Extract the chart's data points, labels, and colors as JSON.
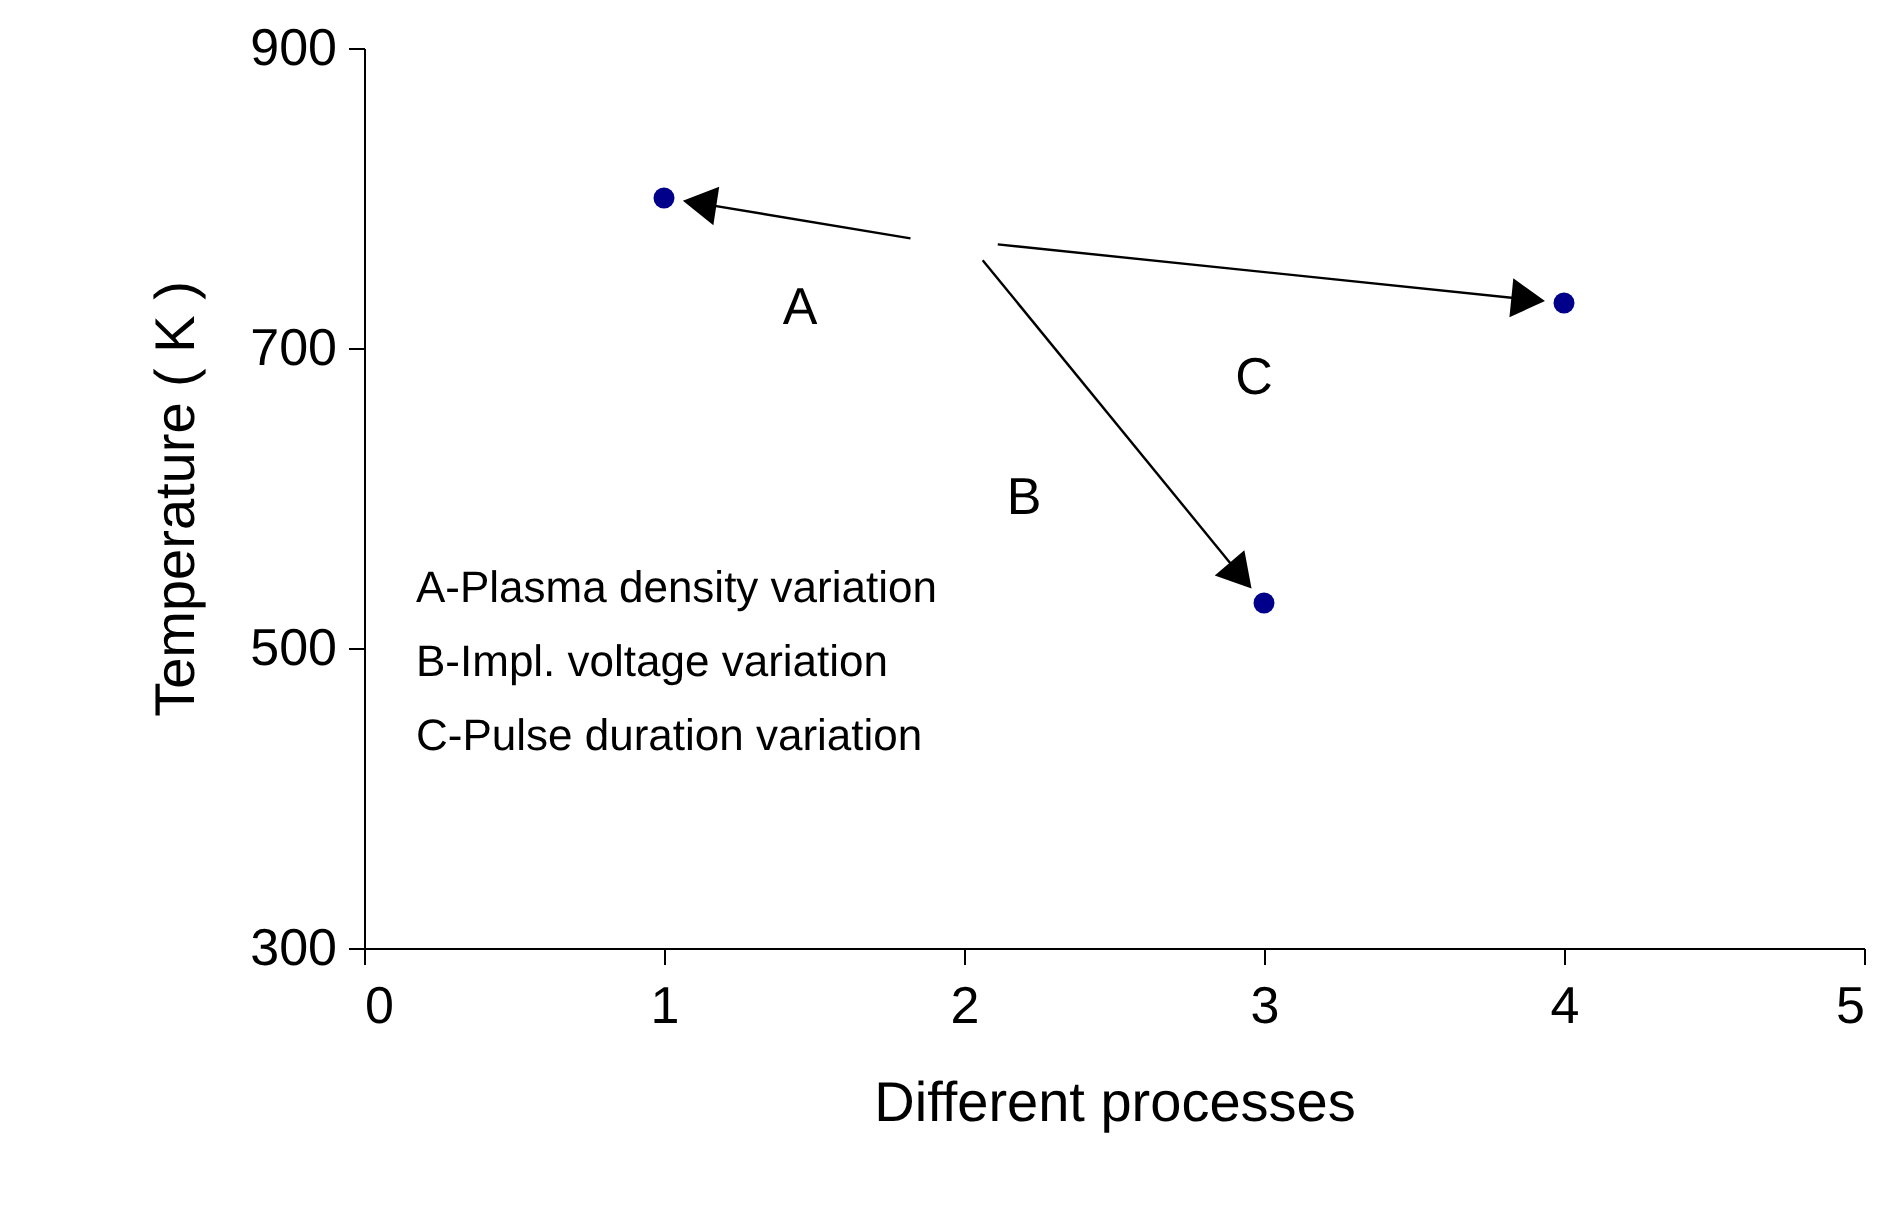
{
  "chart_data": {
    "type": "scatter",
    "xlabel": "Different processes",
    "ylabel": "Temperature ( K )",
    "x": [
      1,
      3,
      4
    ],
    "series": [
      {
        "color": "#00008b",
        "values": [
          800,
          530,
          730
        ]
      }
    ],
    "xlim": [
      0,
      5
    ],
    "xticks": [
      0,
      1,
      2,
      3,
      4,
      5
    ],
    "ylim": [
      300,
      900
    ],
    "yticks": [
      300,
      500,
      700,
      900
    ],
    "marker": "circle",
    "grid": false,
    "annotations": [
      "A",
      "B",
      "C",
      "A-Plasma density variation",
      "B-Impl. voltage variation",
      "C-Pulse duration variation"
    ]
  }
}
